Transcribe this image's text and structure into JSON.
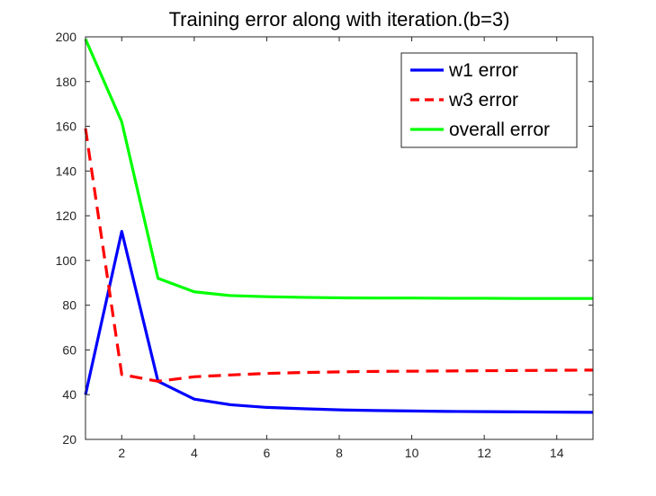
{
  "chart_data": {
    "type": "line",
    "title": "Training error along with iteration.(b=3)",
    "xlabel": "",
    "ylabel": "",
    "xlim": [
      1,
      15
    ],
    "ylim": [
      20,
      200
    ],
    "xticks": [
      2,
      4,
      6,
      8,
      10,
      12,
      14
    ],
    "yticks": [
      20,
      40,
      60,
      80,
      100,
      120,
      140,
      160,
      180,
      200
    ],
    "grid": false,
    "legend_position": "top-right",
    "x": [
      1,
      2,
      3,
      4,
      5,
      6,
      7,
      8,
      9,
      10,
      11,
      12,
      13,
      14,
      15
    ],
    "series": [
      {
        "name": "w1 error",
        "color": "#0000ff",
        "style": "solid",
        "values": [
          40,
          113,
          46,
          38,
          35.5,
          34.3,
          33.7,
          33.2,
          32.9,
          32.7,
          32.5,
          32.4,
          32.3,
          32.2,
          32.1
        ]
      },
      {
        "name": "w3 error",
        "color": "#ff0000",
        "style": "dashed",
        "values": [
          159,
          49,
          46,
          48,
          48.8,
          49.5,
          49.9,
          50.2,
          50.4,
          50.5,
          50.6,
          50.7,
          50.8,
          50.9,
          51
        ]
      },
      {
        "name": "overall error",
        "color": "#00ff00",
        "style": "solid",
        "values": [
          199,
          162,
          92,
          86,
          84.3,
          83.8,
          83.5,
          83.3,
          83.2,
          83.2,
          83.1,
          83.1,
          83,
          83,
          83
        ]
      }
    ]
  }
}
